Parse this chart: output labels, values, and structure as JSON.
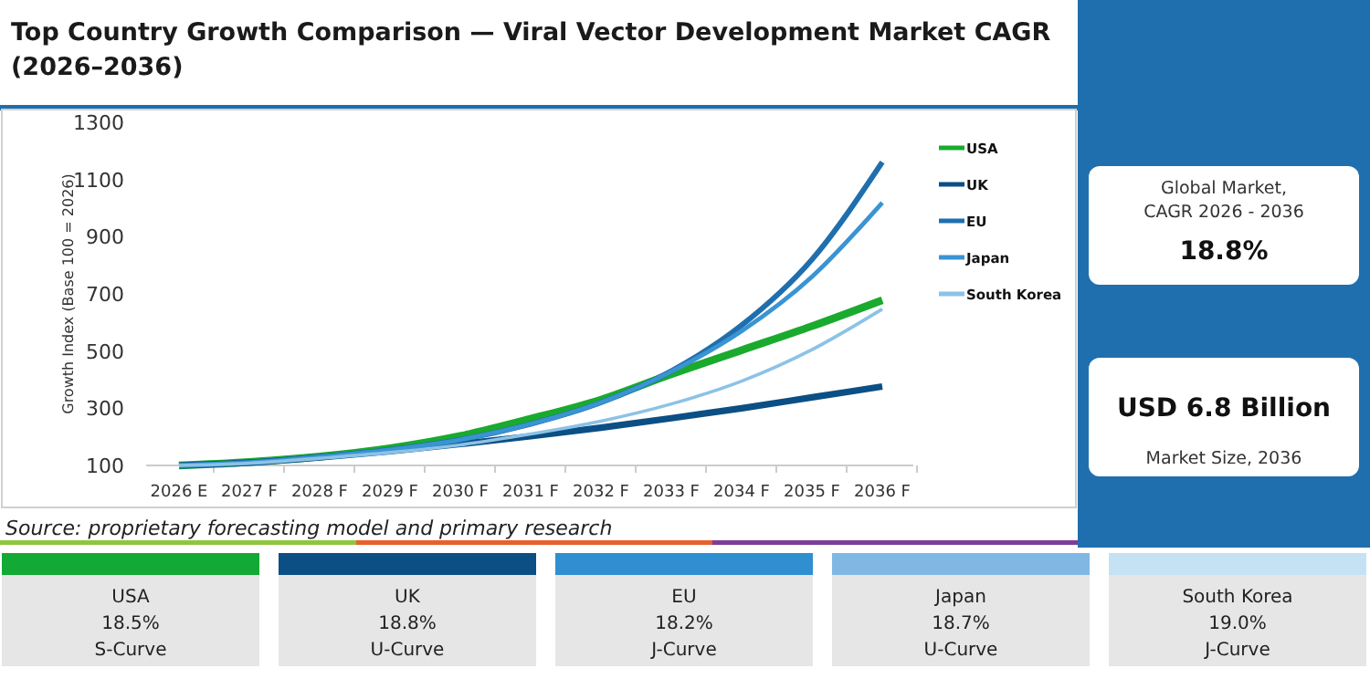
{
  "chart_data": [
    {
      "type": "line",
      "title": "Top Country Growth Comparison — Viral Vector Development Market CAGR (2026–2036)",
      "ylabel": "Growth Index (Base 100 = 2026)",
      "categories": [
        "2026 E",
        "2027 F",
        "2028 F",
        "2029 F",
        "2030 F",
        "2031 F",
        "2032 F",
        "2033 F",
        "2034 F",
        "2035 F",
        "2036 F"
      ],
      "series": [
        {
          "name": "USA",
          "color": "#1aaa2e",
          "values": [
            100,
            112,
            131,
            160,
            203,
            263,
            330,
            419,
            503,
            587,
            678
          ]
        },
        {
          "name": "UK",
          "color": "#0b4f84",
          "values": [
            100,
            110,
            128,
            150,
            175,
            202,
            232,
            265,
            300,
            338,
            376
          ]
        },
        {
          "name": "EU",
          "color": "#1f6fae",
          "values": [
            100,
            110,
            130,
            155,
            190,
            245,
            320,
            430,
            590,
            820,
            1161
          ]
        },
        {
          "name": "Japan",
          "color": "#3a94d2",
          "values": [
            100,
            110,
            130,
            155,
            190,
            245,
            320,
            428,
            570,
            760,
            1019
          ]
        },
        {
          "name": "South Korea",
          "color": "#8cc2e6",
          "values": [
            100,
            108,
            125,
            145,
            172,
            210,
            255,
            315,
            395,
            505,
            647
          ]
        }
      ],
      "ylim": [
        100,
        1300
      ],
      "yticks": [
        100,
        300,
        500,
        700,
        900,
        1100,
        1300
      ],
      "grid": false,
      "legend": "right",
      "marker": "none",
      "line_style": "solid",
      "annotations": [
        "Source: proprietary forecasting model and primary research"
      ]
    },
    {
      "type": "other",
      "annotations": [
        "Global Market,",
        "CAGR 2026 - 2036",
        "18.8%",
        "USD 6.8 Billion",
        "Market Size, 2036"
      ]
    },
    {
      "type": "other",
      "categories": [
        "USA",
        "UK",
        "EU",
        "Japan",
        "South Korea"
      ],
      "colors": [
        "#12a935",
        "#0b4f84",
        "#2f8fd0",
        "#7fb8e2",
        "#c5e2f5"
      ],
      "annotations": [
        "18.5%",
        "S-Curve",
        "18.8%",
        "U-Curve",
        "18.2%",
        "J-Curve",
        "18.7%",
        "U-Curve",
        "19.0%",
        "J-Curve"
      ]
    }
  ]
}
